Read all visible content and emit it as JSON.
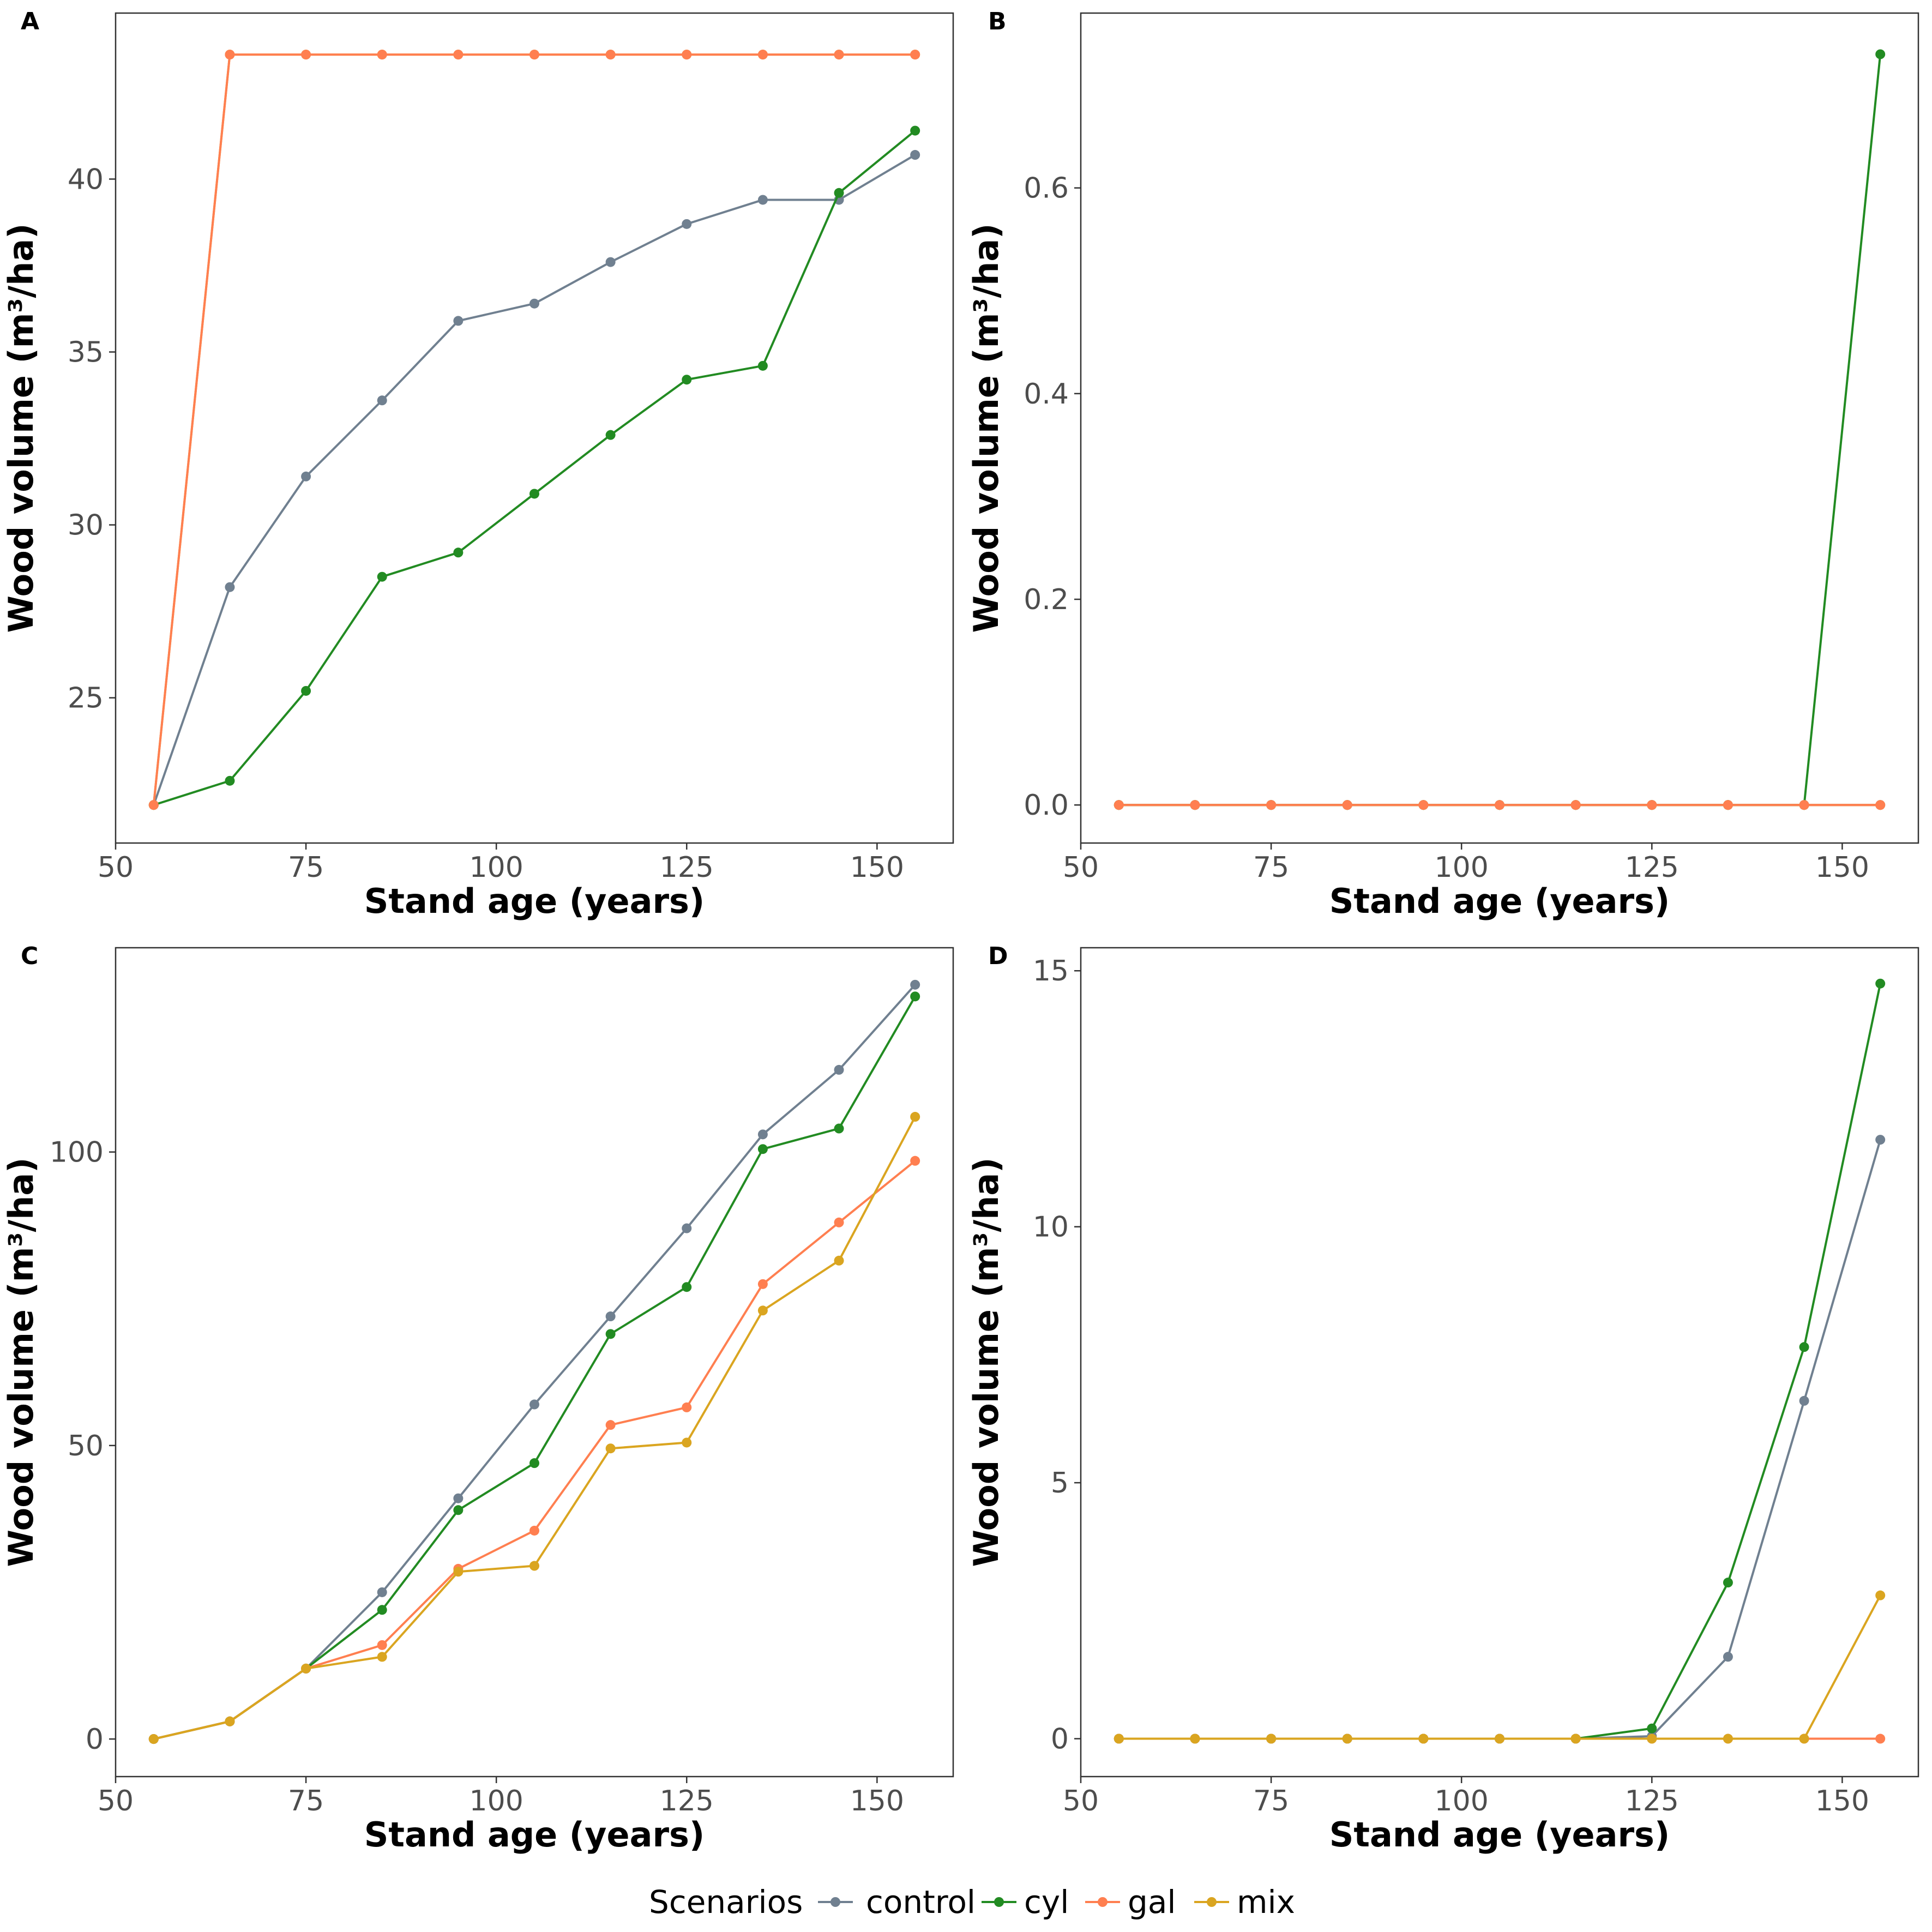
{
  "legend": {
    "title": "Scenarios",
    "items": [
      {
        "name": "control",
        "color": "#708090"
      },
      {
        "name": "cyl",
        "color": "#228B22"
      },
      {
        "name": "gal",
        "color": "#FF7F50"
      },
      {
        "name": "mix",
        "color": "#DAA520"
      }
    ]
  },
  "chart_data": [
    {
      "panel": "A",
      "type": "line",
      "xlabel": "Stand age (years)",
      "ylabel": "Wood volume (m³/ha)",
      "x": [
        55,
        65,
        75,
        85,
        95,
        105,
        115,
        125,
        135,
        145,
        155
      ],
      "xlim": [
        50,
        160
      ],
      "ylim": [
        20.8,
        44.8
      ],
      "xticks": [
        50,
        75,
        100,
        125,
        150
      ],
      "yticks": [
        25,
        30,
        35,
        40
      ],
      "ytick_labels": [
        "25",
        "30",
        "35",
        "40"
      ],
      "series": [
        {
          "name": "control",
          "values": [
            21.9,
            28.2,
            31.4,
            33.6,
            35.9,
            36.4,
            37.6,
            38.7,
            39.4,
            39.4,
            40.7
          ]
        },
        {
          "name": "cyl",
          "values": [
            21.9,
            22.6,
            25.2,
            28.5,
            29.2,
            30.9,
            32.6,
            34.2,
            34.6,
            39.6,
            41.4
          ]
        },
        {
          "name": "mix",
          "values": [
            21.9,
            43.6,
            43.6,
            43.6,
            43.6,
            43.6,
            43.6,
            43.6,
            43.6,
            43.6,
            43.6
          ]
        },
        {
          "name": "gal",
          "values": [
            21.9,
            43.6,
            43.6,
            43.6,
            43.6,
            43.6,
            43.6,
            43.6,
            43.6,
            43.6,
            43.6
          ]
        }
      ]
    },
    {
      "panel": "B",
      "type": "line",
      "xlabel": "Stand age (years)",
      "ylabel": "Wood volume (m³/ha)",
      "x": [
        55,
        65,
        75,
        85,
        95,
        105,
        115,
        125,
        135,
        145,
        155
      ],
      "xlim": [
        50,
        160
      ],
      "ylim": [
        -0.037,
        0.77
      ],
      "xticks": [
        50,
        75,
        100,
        125,
        150
      ],
      "yticks": [
        0,
        0.2,
        0.4,
        0.6
      ],
      "ytick_labels": [
        "0.0",
        "0.2",
        "0.4",
        "0.6"
      ],
      "series": [
        {
          "name": "control",
          "values": [
            0,
            0,
            0,
            0,
            0,
            0,
            0,
            0,
            0,
            0,
            0
          ]
        },
        {
          "name": "cyl",
          "values": [
            0,
            0,
            0,
            0,
            0,
            0,
            0,
            0,
            0,
            0,
            0.73
          ]
        },
        {
          "name": "mix",
          "values": [
            0,
            0,
            0,
            0,
            0,
            0,
            0,
            0,
            0,
            0,
            0
          ]
        },
        {
          "name": "gal",
          "values": [
            0,
            0,
            0,
            0,
            0,
            0,
            0,
            0,
            0,
            0,
            0
          ]
        }
      ]
    },
    {
      "panel": "C",
      "type": "line",
      "xlabel": "Stand age (years)",
      "ylabel": "Wood volume (m³/ha)",
      "x": [
        55,
        65,
        75,
        85,
        95,
        105,
        115,
        125,
        135,
        145,
        155
      ],
      "xlim": [
        50,
        160
      ],
      "ylim": [
        -6.4,
        134.8
      ],
      "xticks": [
        50,
        75,
        100,
        125,
        150
      ],
      "yticks": [
        0,
        50,
        100
      ],
      "ytick_labels": [
        "0",
        "50",
        "100"
      ],
      "series": [
        {
          "name": "control",
          "values": [
            0,
            3,
            12,
            25,
            41,
            57,
            72,
            87,
            103,
            114,
            128.5
          ]
        },
        {
          "name": "cyl",
          "values": [
            0,
            3,
            12,
            22,
            39,
            47,
            69,
            77,
            100.5,
            104,
            126.5
          ]
        },
        {
          "name": "gal",
          "values": [
            0,
            3,
            12,
            16,
            29,
            35.5,
            53.5,
            56.5,
            77.5,
            88,
            98.5
          ]
        },
        {
          "name": "mix",
          "values": [
            0,
            3,
            12,
            14,
            28.5,
            29.5,
            49.5,
            50.5,
            73,
            81.5,
            106
          ]
        }
      ]
    },
    {
      "panel": "D",
      "type": "line",
      "xlabel": "Stand age (years)",
      "ylabel": "Wood volume (m³/ha)",
      "x": [
        55,
        65,
        75,
        85,
        95,
        105,
        115,
        125,
        135,
        145,
        155
      ],
      "xlim": [
        50,
        160
      ],
      "ylim": [
        -0.74,
        15.45
      ],
      "xticks": [
        50,
        75,
        100,
        125,
        150
      ],
      "yticks": [
        0,
        5,
        10,
        15
      ],
      "ytick_labels": [
        "0",
        "5",
        "10",
        "15"
      ],
      "series": [
        {
          "name": "control",
          "values": [
            0,
            0,
            0,
            0,
            0,
            0,
            0,
            0.05,
            1.6,
            6.6,
            11.7
          ]
        },
        {
          "name": "cyl",
          "values": [
            0,
            0,
            0,
            0,
            0,
            0,
            0,
            0.2,
            3.05,
            7.65,
            14.75
          ]
        },
        {
          "name": "gal",
          "values": [
            0,
            0,
            0,
            0,
            0,
            0,
            0,
            0,
            0,
            0,
            0
          ]
        },
        {
          "name": "mix",
          "values": [
            0,
            0,
            0,
            0,
            0,
            0,
            0,
            0,
            0,
            0,
            2.8
          ]
        }
      ]
    }
  ]
}
